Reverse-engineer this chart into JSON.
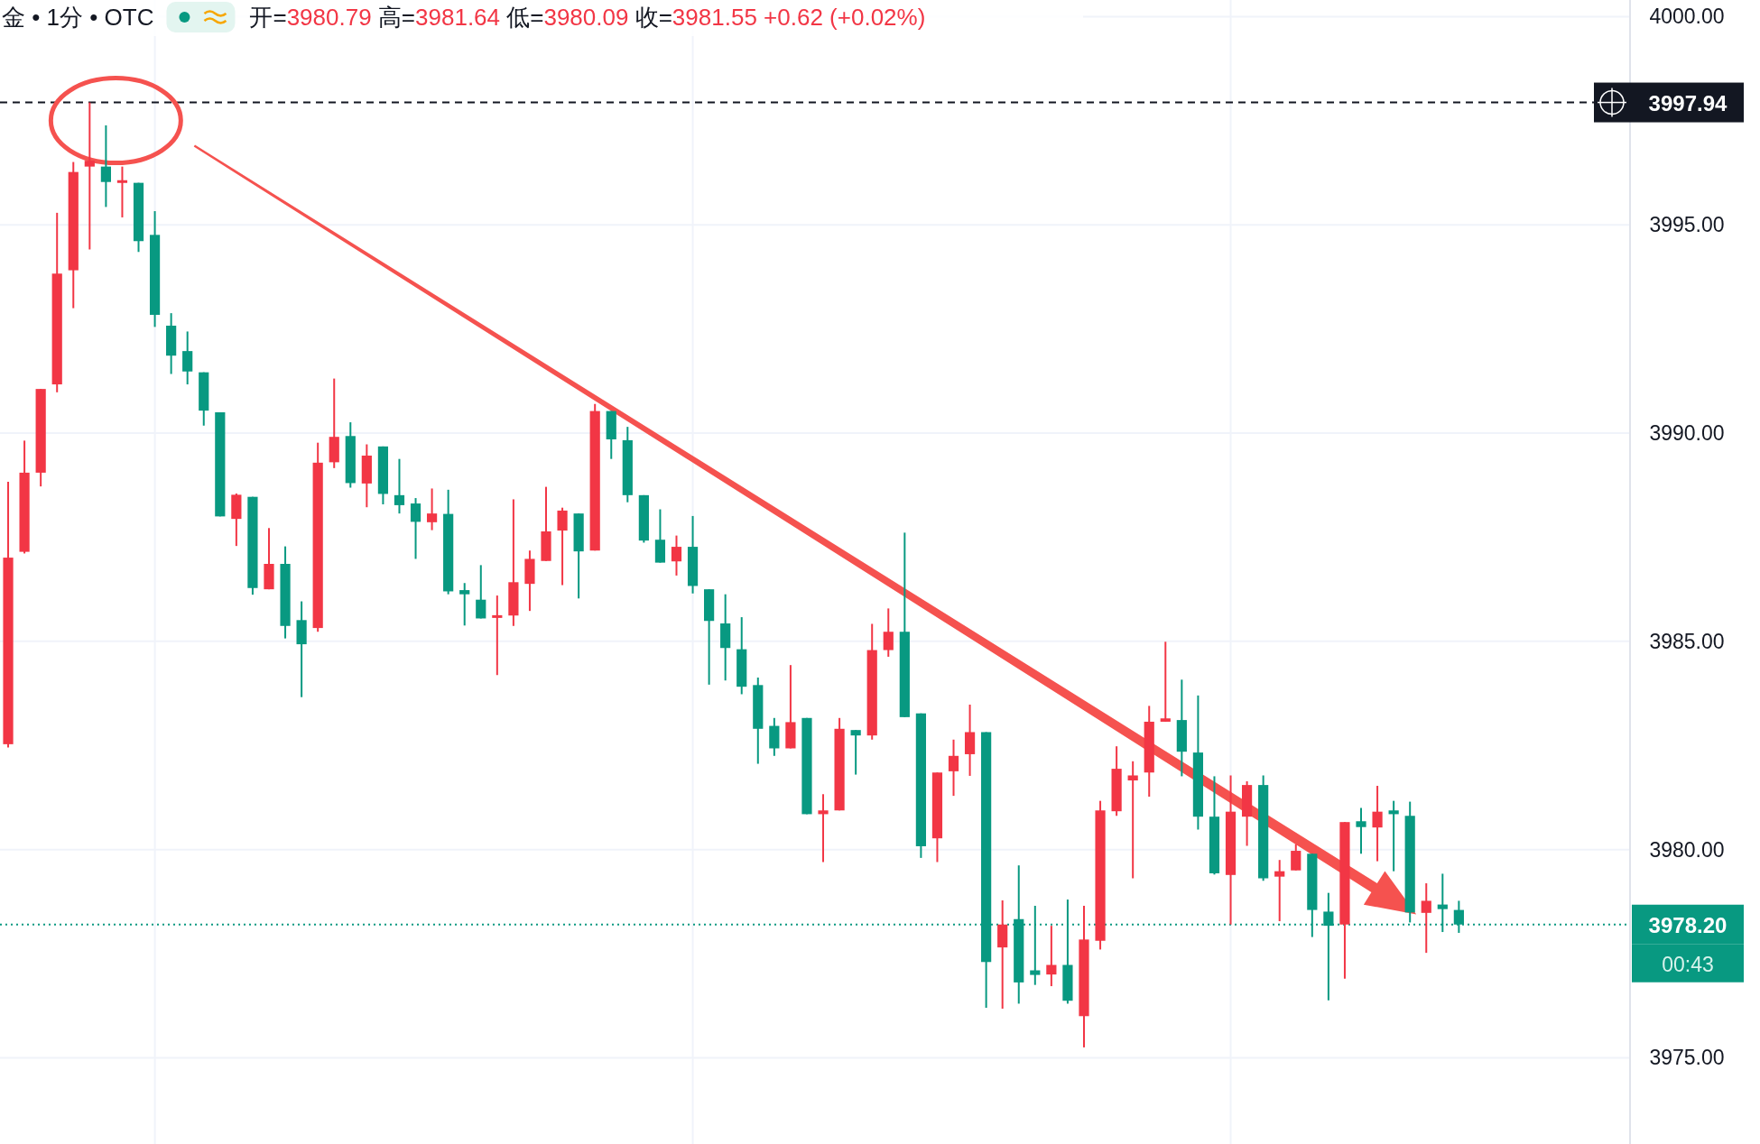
{
  "chart_data": {
    "type": "candlestick",
    "title": "金 • 1分 • OTC",
    "subtitle": "开=3980.79 高=3981.64 低=3980.09 收=3981.55 +0.62 (+0.02%)",
    "categories": [
      null,
      null,
      null,
      null,
      null,
      null,
      null,
      null,
      null,
      null,
      null,
      null,
      null,
      null,
      null,
      null,
      null,
      null,
      null,
      null,
      null,
      null,
      null,
      null,
      null,
      null,
      null,
      null,
      null,
      null,
      null,
      null,
      null,
      null,
      null,
      null,
      null,
      null,
      null,
      null,
      null,
      null,
      null,
      null,
      null,
      null,
      null,
      null,
      null,
      null,
      null,
      null,
      null,
      null,
      null,
      null,
      null,
      null,
      null,
      null,
      null,
      null,
      null,
      null,
      null,
      null,
      null,
      null,
      null,
      null,
      null,
      null,
      null,
      null,
      null,
      null,
      null,
      null,
      null,
      null,
      null,
      null,
      null,
      null,
      null,
      null,
      null,
      null,
      null,
      null,
      null,
      null,
      null,
      null,
      null,
      null,
      null,
      null,
      null,
      null
    ],
    "ohlc": [
      [
        3982.53,
        3988.83,
        3982.45,
        3987.01
      ],
      [
        3987.15,
        3989.82,
        3987.11,
        3989.05
      ],
      [
        3989.05,
        3991.06,
        3988.72,
        3991.06
      ],
      [
        3991.17,
        3995.29,
        3990.98,
        3993.83
      ],
      [
        3993.91,
        3996.51,
        3993.0,
        3996.27
      ],
      [
        3996.4,
        3997.94,
        3994.41,
        3996.54
      ],
      [
        3996.4,
        3997.39,
        3995.43,
        3996.03
      ],
      [
        3996.02,
        3996.4,
        3995.18,
        3996.06
      ],
      [
        3996.01,
        3996.01,
        3994.35,
        3994.61
      ],
      [
        3994.76,
        3995.33,
        3992.55,
        3992.84
      ],
      [
        3992.58,
        3992.88,
        3991.42,
        3991.86
      ],
      [
        3991.97,
        3992.44,
        3991.17,
        3991.48
      ],
      [
        3991.46,
        3991.46,
        3990.18,
        3990.54
      ],
      [
        3990.5,
        3990.5,
        3988.0,
        3988.0
      ],
      [
        3987.94,
        3988.55,
        3987.29,
        3988.52
      ],
      [
        3988.47,
        3988.47,
        3986.12,
        3986.28
      ],
      [
        3986.25,
        3987.72,
        3986.25,
        3986.86
      ],
      [
        3986.86,
        3987.28,
        3985.07,
        3985.37
      ],
      [
        3985.51,
        3985.96,
        3983.66,
        3984.93
      ],
      [
        3985.32,
        3989.77,
        3985.23,
        3989.29
      ],
      [
        3989.3,
        3991.31,
        3989.16,
        3989.91
      ],
      [
        3989.93,
        3990.26,
        3988.69,
        3988.8
      ],
      [
        3988.79,
        3989.73,
        3988.22,
        3989.46
      ],
      [
        3989.68,
        3989.68,
        3988.29,
        3988.54
      ],
      [
        3988.51,
        3989.38,
        3988.07,
        3988.27
      ],
      [
        3988.31,
        3988.44,
        3986.98,
        3987.87
      ],
      [
        3987.86,
        3988.67,
        3987.67,
        3988.07
      ],
      [
        3988.06,
        3988.64,
        3986.13,
        3986.2
      ],
      [
        3986.23,
        3986.4,
        3985.38,
        3986.13
      ],
      [
        3986.0,
        3986.83,
        3985.55,
        3985.55
      ],
      [
        3985.57,
        3986.1,
        3984.19,
        3985.62
      ],
      [
        3985.62,
        3988.41,
        3985.37,
        3986.42
      ],
      [
        3986.38,
        3987.18,
        3985.73,
        3986.98
      ],
      [
        3986.93,
        3988.71,
        3986.93,
        3987.64
      ],
      [
        3987.66,
        3988.21,
        3986.35,
        3988.14
      ],
      [
        3988.07,
        3988.07,
        3986.03,
        3987.16
      ],
      [
        3987.18,
        3990.7,
        3987.18,
        3990.53
      ],
      [
        3990.53,
        3990.53,
        3989.38,
        3989.85
      ],
      [
        3989.83,
        3990.15,
        3988.34,
        3988.51
      ],
      [
        3988.51,
        3988.51,
        3987.37,
        3987.42
      ],
      [
        3987.44,
        3988.17,
        3986.89,
        3986.89
      ],
      [
        3986.92,
        3987.54,
        3986.58,
        3987.27
      ],
      [
        3987.27,
        3988.01,
        3986.15,
        3986.33
      ],
      [
        3986.25,
        3986.25,
        3983.96,
        3985.49
      ],
      [
        3985.43,
        3986.13,
        3984.06,
        3984.84
      ],
      [
        3984.81,
        3985.58,
        3983.73,
        3983.91
      ],
      [
        3983.95,
        3984.13,
        3982.06,
        3982.9
      ],
      [
        3982.97,
        3983.16,
        3982.25,
        3982.43
      ],
      [
        3982.43,
        3984.43,
        3982.43,
        3983.06
      ],
      [
        3983.16,
        3983.16,
        3980.85,
        3980.85
      ],
      [
        3980.85,
        3981.33,
        3979.7,
        3980.94
      ],
      [
        3980.94,
        3983.16,
        3980.94,
        3982.9
      ],
      [
        3982.87,
        3982.87,
        3981.8,
        3982.74
      ],
      [
        3982.74,
        3985.42,
        3982.64,
        3984.79
      ],
      [
        3984.79,
        3985.79,
        3984.63,
        3985.23
      ],
      [
        3985.23,
        3987.61,
        3983.18,
        3983.18
      ],
      [
        3983.27,
        3983.27,
        3979.8,
        3980.08
      ],
      [
        3980.27,
        3981.85,
        3979.7,
        3981.85
      ],
      [
        3981.88,
        3982.64,
        3981.29,
        3982.25
      ],
      [
        3982.29,
        3983.48,
        3981.77,
        3982.82
      ],
      [
        3982.82,
        3982.82,
        3976.2,
        3977.3
      ],
      [
        3977.65,
        3978.78,
        3976.18,
        3978.2
      ],
      [
        3978.33,
        3979.62,
        3976.3,
        3976.81
      ],
      [
        3977.1,
        3978.65,
        3976.75,
        3976.99
      ],
      [
        3977.0,
        3978.17,
        3976.72,
        3977.23
      ],
      [
        3977.23,
        3978.8,
        3976.3,
        3976.37
      ],
      [
        3976.0,
        3978.65,
        3975.25,
        3977.84
      ],
      [
        3977.81,
        3981.17,
        3977.6,
        3980.94
      ],
      [
        3980.92,
        3982.48,
        3980.81,
        3981.94
      ],
      [
        3981.66,
        3982.12,
        3979.31,
        3981.78
      ],
      [
        3981.85,
        3983.45,
        3981.27,
        3983.07
      ],
      [
        3983.07,
        3984.99,
        3983.07,
        3983.15
      ],
      [
        3983.11,
        3984.08,
        3981.76,
        3982.35
      ],
      [
        3982.33,
        3983.7,
        3980.48,
        3980.79
      ],
      [
        3980.79,
        3981.76,
        3979.4,
        3979.43
      ],
      [
        3979.39,
        3981.78,
        3978.2,
        3980.91
      ],
      [
        3980.79,
        3981.64,
        3980.09,
        3981.55
      ],
      [
        3981.55,
        3981.78,
        3979.25,
        3979.31
      ],
      [
        3979.35,
        3979.75,
        3978.28,
        3979.48
      ],
      [
        3979.5,
        3980.13,
        3979.5,
        3979.97
      ],
      [
        3979.9,
        3979.9,
        3977.9,
        3978.55
      ],
      [
        3978.51,
        3978.96,
        3976.38,
        3978.17
      ],
      [
        3978.2,
        3980.66,
        3976.9,
        3980.66
      ],
      [
        3980.68,
        3981.0,
        3979.9,
        3980.54
      ],
      [
        3980.53,
        3981.53,
        3979.72,
        3980.91
      ],
      [
        3980.94,
        3981.17,
        3979.48,
        3980.85
      ],
      [
        3980.81,
        3981.15,
        3978.25,
        3978.49
      ],
      [
        3978.48,
        3979.19,
        3977.52,
        3978.77
      ],
      [
        3978.68,
        3979.42,
        3978.02,
        3978.57
      ],
      [
        3978.55,
        3978.77,
        3978.0,
        3978.2
      ],
      null,
      null,
      null,
      null,
      null,
      null,
      null,
      null,
      null,
      null
    ],
    "colors": [
      "#f23645",
      "#f23645",
      "#f23645",
      "#f23645",
      "#f23645",
      "#f23645",
      "#089981",
      "#f23645",
      "#089981",
      "#089981",
      "#089981",
      "#089981",
      "#089981",
      "#089981",
      "#f23645",
      "#089981",
      "#f23645",
      "#089981",
      "#089981",
      "#f23645",
      "#f23645",
      "#089981",
      "#f23645",
      "#089981",
      "#089981",
      "#089981",
      "#f23645",
      "#089981",
      "#089981",
      "#089981",
      "#f23645",
      "#f23645",
      "#f23645",
      "#f23645",
      "#f23645",
      "#089981",
      "#f23645",
      "#089981",
      "#089981",
      "#089981",
      "#089981",
      "#f23645",
      "#089981",
      "#089981",
      "#089981",
      "#089981",
      "#089981",
      "#089981",
      "#f23645",
      "#089981",
      "#f23645",
      "#f23645",
      "#089981",
      "#f23645",
      "#f23645",
      "#089981",
      "#089981",
      "#f23645",
      "#f23645",
      "#f23645",
      "#089981",
      "#f23645",
      "#089981",
      "#089981",
      "#f23645",
      "#089981",
      "#f23645",
      "#f23645",
      "#f23645",
      "#f23645",
      "#f23645",
      "#f23645",
      "#089981",
      "#089981",
      "#089981",
      "#f23645",
      "#f23645",
      "#089981",
      "#f23645",
      "#f23645",
      "#089981",
      "#089981",
      "#f23645",
      "#089981",
      "#f23645",
      "#089981",
      "#089981",
      "#f23645",
      "#089981",
      "#089981",
      null,
      null,
      null,
      null,
      null,
      null,
      null,
      null,
      null,
      null
    ],
    "ylim": [
      3972.93,
      4000.4
    ],
    "yticks": [
      {
        "value": 3975,
        "label": "3975.00"
      },
      {
        "value": 3980,
        "label": "3980.00"
      },
      {
        "value": 3985,
        "label": "3985.00"
      },
      {
        "value": 3990,
        "label": "3990.00"
      },
      {
        "value": 3995,
        "label": "3995.00"
      },
      {
        "value": 4000,
        "label": "4000.00"
      }
    ],
    "grid": true,
    "ref_lines": [
      {
        "axis": "y",
        "value": 3997.94,
        "label": "3997.94",
        "color": "#131722",
        "line_style": "dashed"
      },
      {
        "axis": "y",
        "value": 3978.2,
        "label": "3978.20",
        "color": "#089981",
        "line_style": "dotted"
      }
    ],
    "annotations": [
      "00:43"
    ]
  }
}
